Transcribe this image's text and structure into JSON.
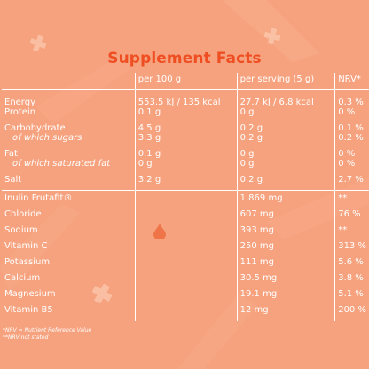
{
  "title": "Supplement Facts",
  "columns": [
    "",
    "per 100 g",
    "per serving (5 g)",
    "NRV*"
  ],
  "group1": [
    {
      "name": "Energy",
      "per100": "553.5 kJ / 135 kcal",
      "serving": "27.7 kJ / 6.8 kcal",
      "nrv": "0.3 %",
      "indent": false
    },
    {
      "name": "Protein",
      "per100": "0.1 g",
      "serving": "0 g",
      "nrv": "0 %",
      "indent": false
    },
    {
      "name": "Carbohydrate",
      "per100": "4.5 g",
      "serving": "0.2 g",
      "nrv": "0.1 %",
      "indent": false
    },
    {
      "name": "of which sugars",
      "per100": "3.3 g",
      "serving": "0.2 g",
      "nrv": "0.2 %",
      "indent": true
    },
    {
      "name": "Fat",
      "per100": "0.1 g",
      "serving": "0 g",
      "nrv": "0 %",
      "indent": false
    },
    {
      "name": "of which saturated fat",
      "per100": "0 g",
      "serving": "0 g",
      "nrv": "0 %",
      "indent": true
    },
    {
      "name": "Salt",
      "per100": "3.2 g",
      "serving": "0.2 g",
      "nrv": "2.7 %",
      "indent": false
    }
  ],
  "group2": [
    {
      "name": "Inulin Frutafit®",
      "per100": "",
      "serving": "1,869 mg",
      "nrv": "**"
    },
    {
      "name": "Chloride",
      "per100": "",
      "serving": "607 mg",
      "nrv": "76 %"
    },
    {
      "name": "Sodium",
      "per100": "",
      "serving": "393 mg",
      "nrv": "**"
    },
    {
      "name": "Vitamin C",
      "per100": "",
      "serving": "250 mg",
      "nrv": "313 %"
    },
    {
      "name": "Potassium",
      "per100": "",
      "serving": "111 mg",
      "nrv": "5.6 %"
    },
    {
      "name": "Calcium",
      "per100": "",
      "serving": "30.5 mg",
      "nrv": "3.8 %"
    },
    {
      "name": "Magnesium",
      "per100": "",
      "serving": "19.1 mg",
      "nrv": "5.1 %"
    },
    {
      "name": "Vitamin B5",
      "per100": "",
      "serving": "12 mg",
      "nrv": "200 %"
    }
  ],
  "footnotes": [
    "*NRV = Nutrient Reference Value",
    "**NRV not stated"
  ],
  "colors": {
    "background": "#f6a27e",
    "title": "#ee4e22",
    "text": "#ffffff"
  }
}
